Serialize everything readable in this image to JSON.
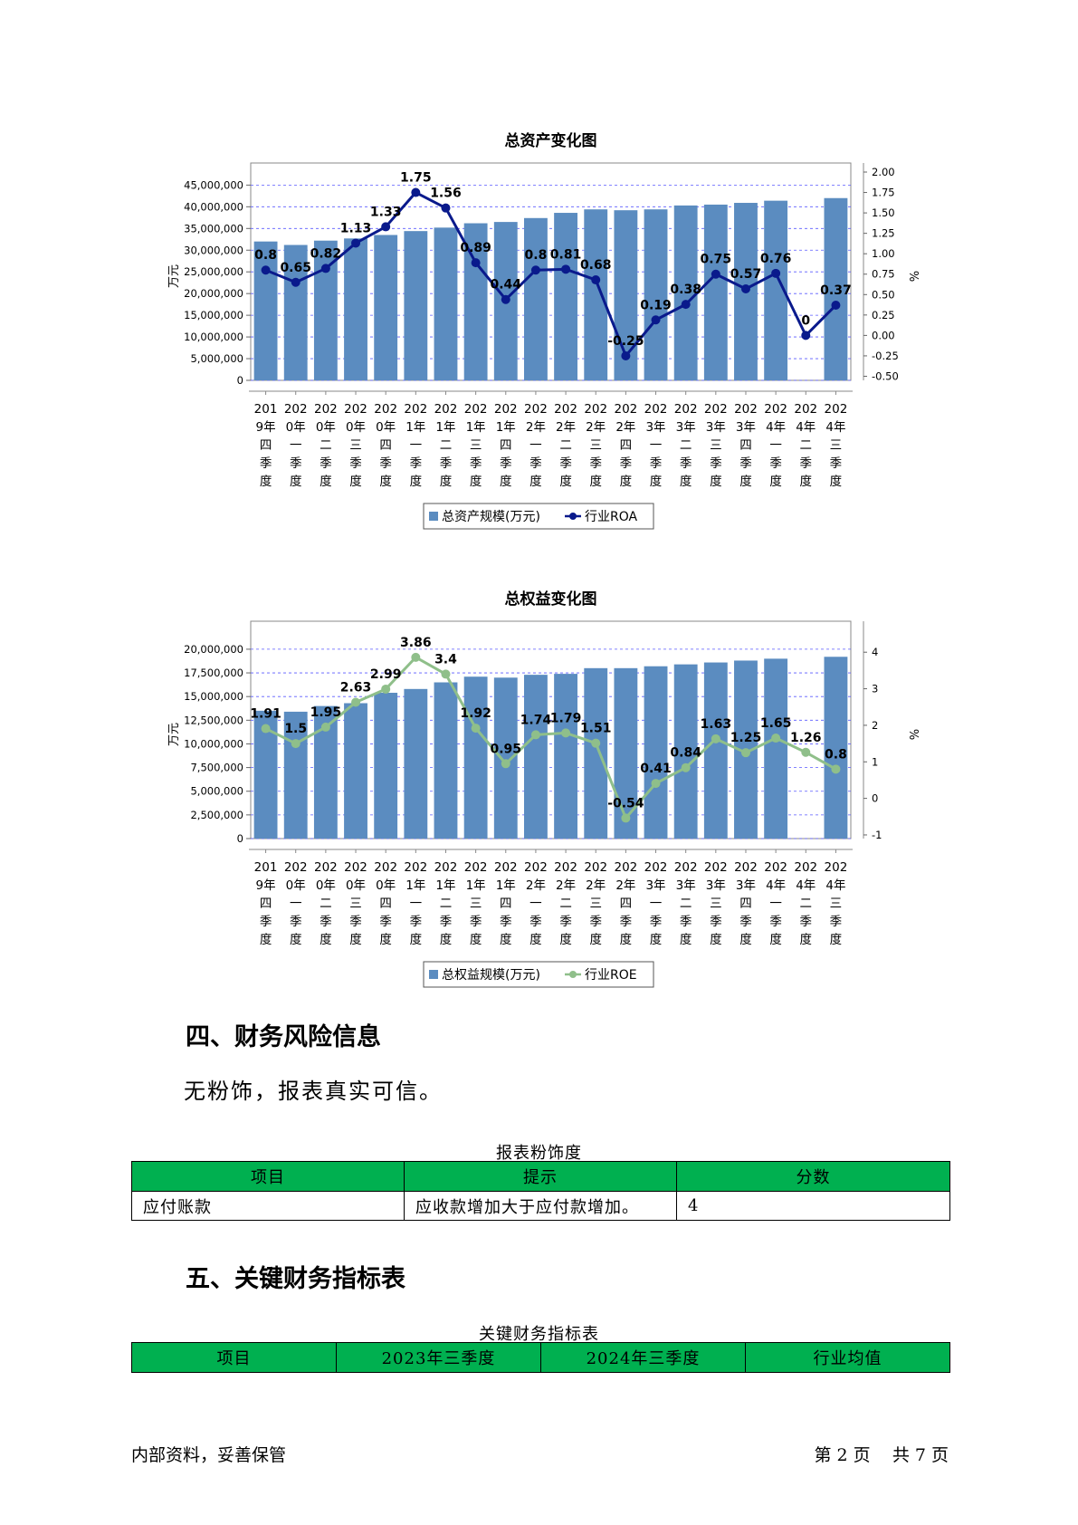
{
  "charts": [
    {
      "chart_data": {
        "type": "bar",
        "title": "总资产变化图",
        "ylabel": "万元",
        "y2label": "%",
        "categories": [
          [
            "201",
            "9年",
            "四",
            "季",
            "度"
          ],
          [
            "202",
            "0年",
            "一",
            "季",
            "度"
          ],
          [
            "202",
            "0年",
            "二",
            "季",
            "度"
          ],
          [
            "202",
            "0年",
            "三",
            "季",
            "度"
          ],
          [
            "202",
            "0年",
            "四",
            "季",
            "度"
          ],
          [
            "202",
            "1年",
            "一",
            "季",
            "度"
          ],
          [
            "202",
            "1年",
            "二",
            "季",
            "度"
          ],
          [
            "202",
            "1年",
            "三",
            "季",
            "度"
          ],
          [
            "202",
            "1年",
            "四",
            "季",
            "度"
          ],
          [
            "202",
            "2年",
            "一",
            "季",
            "度"
          ],
          [
            "202",
            "2年",
            "二",
            "季",
            "度"
          ],
          [
            "202",
            "2年",
            "三",
            "季",
            "度"
          ],
          [
            "202",
            "2年",
            "四",
            "季",
            "度"
          ],
          [
            "202",
            "3年",
            "一",
            "季",
            "度"
          ],
          [
            "202",
            "3年",
            "二",
            "季",
            "度"
          ],
          [
            "202",
            "3年",
            "三",
            "季",
            "度"
          ],
          [
            "202",
            "3年",
            "四",
            "季",
            "度"
          ],
          [
            "202",
            "4年",
            "一",
            "季",
            "度"
          ],
          [
            "202",
            "4年",
            "二",
            "季",
            "度"
          ],
          [
            "202",
            "4年",
            "三",
            "季",
            "度"
          ]
        ],
        "ylim": [
          0,
          48000000
        ],
        "yticks": [
          0,
          5000000,
          10000000,
          15000000,
          20000000,
          25000000,
          30000000,
          35000000,
          40000000,
          45000000
        ],
        "ytick_labels": [
          "0",
          "5,000,000",
          "10,000,000",
          "15,000,000",
          "20,000,000",
          "25,000,000",
          "30,000,000",
          "35,000,000",
          "40,000,000",
          "45,000,000"
        ],
        "y2lim": [
          -0.55,
          2.0
        ],
        "y2ticks": [
          -0.5,
          -0.25,
          0,
          0.25,
          0.5,
          0.75,
          1.0,
          1.25,
          1.5,
          1.75,
          2.0
        ],
        "y2tick_labels": [
          "-0.50",
          "-0.25",
          "0.00",
          "0.25",
          "0.50",
          "0.75",
          "1.00",
          "1.25",
          "1.50",
          "1.75",
          "2.00"
        ],
        "series": [
          {
            "name": "总资产规模(万元)",
            "kind": "bar",
            "values": [
              32000000,
              31200000,
              32200000,
              32700000,
              33500000,
              34400000,
              35200000,
              36200000,
              36500000,
              37400000,
              38600000,
              39400000,
              39200000,
              39400000,
              40300000,
              40500000,
              40900000,
              41400000,
              null,
              42000000
            ]
          },
          {
            "name": "行业ROA",
            "kind": "line",
            "values": [
              0.8,
              0.65,
              0.82,
              1.13,
              1.33,
              1.75,
              1.56,
              0.89,
              0.44,
              0.8,
              0.81,
              0.68,
              -0.25,
              0.19,
              0.38,
              0.75,
              0.57,
              0.76,
              0,
              0.37
            ],
            "labels": [
              "0.8",
              "0.65",
              "0.82",
              "1.13",
              "1.33",
              "1.75",
              "1.56",
              "0.89",
              "0.44",
              "0.8",
              "0.81",
              "0.68",
              "-0.25",
              "0.19",
              "0.38",
              "0.75",
              "0.57",
              "0.76",
              "0",
              "0.37"
            ]
          }
        ],
        "grid": true,
        "legend_position": "bottom"
      },
      "colors": {
        "bar": "#5b8cc0",
        "line": "#0a1a8c"
      }
    },
    {
      "chart_data": {
        "type": "bar",
        "title": "总权益变化图",
        "ylabel": "万元",
        "y2label": "%",
        "categories": [
          [
            "201",
            "9年",
            "四",
            "季",
            "度"
          ],
          [
            "202",
            "0年",
            "一",
            "季",
            "度"
          ],
          [
            "202",
            "0年",
            "二",
            "季",
            "度"
          ],
          [
            "202",
            "0年",
            "三",
            "季",
            "度"
          ],
          [
            "202",
            "0年",
            "四",
            "季",
            "度"
          ],
          [
            "202",
            "1年",
            "一",
            "季",
            "度"
          ],
          [
            "202",
            "1年",
            "二",
            "季",
            "度"
          ],
          [
            "202",
            "1年",
            "三",
            "季",
            "度"
          ],
          [
            "202",
            "1年",
            "四",
            "季",
            "度"
          ],
          [
            "202",
            "2年",
            "一",
            "季",
            "度"
          ],
          [
            "202",
            "2年",
            "二",
            "季",
            "度"
          ],
          [
            "202",
            "2年",
            "三",
            "季",
            "度"
          ],
          [
            "202",
            "2年",
            "四",
            "季",
            "度"
          ],
          [
            "202",
            "3年",
            "一",
            "季",
            "度"
          ],
          [
            "202",
            "3年",
            "二",
            "季",
            "度"
          ],
          [
            "202",
            "3年",
            "三",
            "季",
            "度"
          ],
          [
            "202",
            "3年",
            "四",
            "季",
            "度"
          ],
          [
            "202",
            "4年",
            "一",
            "季",
            "度"
          ],
          [
            "202",
            "4年",
            "二",
            "季",
            "度"
          ],
          [
            "202",
            "4年",
            "三",
            "季",
            "度"
          ]
        ],
        "ylim": [
          0,
          22000000
        ],
        "yticks": [
          0,
          2500000,
          5000000,
          7500000,
          10000000,
          12500000,
          15000000,
          17500000,
          20000000
        ],
        "ytick_labels": [
          "0",
          "2,500,000",
          "5,000,000",
          "7,500,000",
          "10,000,000",
          "12,500,000",
          "15,000,000",
          "17,500,000",
          "20,000,000"
        ],
        "y2lim": [
          -1.1,
          4.6
        ],
        "y2ticks": [
          -1,
          0,
          1,
          2,
          3,
          4
        ],
        "y2tick_labels": [
          "-1",
          "0",
          "1",
          "2",
          "3",
          "4"
        ],
        "series": [
          {
            "name": "总权益规模(万元)",
            "kind": "bar",
            "values": [
              13500000,
              13400000,
              14000000,
              14300000,
              15400000,
              15800000,
              16500000,
              17100000,
              17000000,
              17300000,
              17400000,
              18000000,
              18000000,
              18200000,
              18400000,
              18600000,
              18800000,
              19000000,
              null,
              19200000
            ]
          },
          {
            "name": "行业ROE",
            "kind": "line",
            "values": [
              1.91,
              1.5,
              1.95,
              2.63,
              2.99,
              3.86,
              3.4,
              1.92,
              0.95,
              1.74,
              1.79,
              1.51,
              -0.54,
              0.41,
              0.84,
              1.63,
              1.25,
              1.65,
              1.26,
              0.8
            ],
            "labels": [
              "1.91",
              "1.5",
              "1.95",
              "2.63",
              "2.99",
              "3.86",
              "3.4",
              "1.92",
              "0.95",
              "1.74",
              "1.79",
              "1.51",
              "-0.54",
              "0.41",
              "0.84",
              "1.63",
              "1.25",
              "1.65",
              "1.26",
              "0.8"
            ]
          }
        ],
        "grid": true,
        "legend_position": "bottom"
      },
      "colors": {
        "bar": "#5b8cc0",
        "line": "#8fbf8a"
      }
    }
  ],
  "section4": {
    "title": "四、财务风险信息",
    "paragraph": "无粉饰，报表真实可信。",
    "table_caption": "报表粉饰度",
    "headers": [
      "项目",
      "提示",
      "分数"
    ],
    "rows": [
      [
        "应付账款",
        "应收款增加大于应付款增加。",
        "4"
      ]
    ]
  },
  "section5": {
    "title": "五、关键财务指标表",
    "table_caption": "关键财务指标表",
    "headers": [
      "项目",
      "2023年三季度",
      "2024年三季度",
      "行业均值"
    ]
  },
  "footer": {
    "left": "内部资料，妥善保管",
    "page": "第 2 页    共 7 页"
  },
  "colors": {
    "table_header": "#00b050"
  }
}
